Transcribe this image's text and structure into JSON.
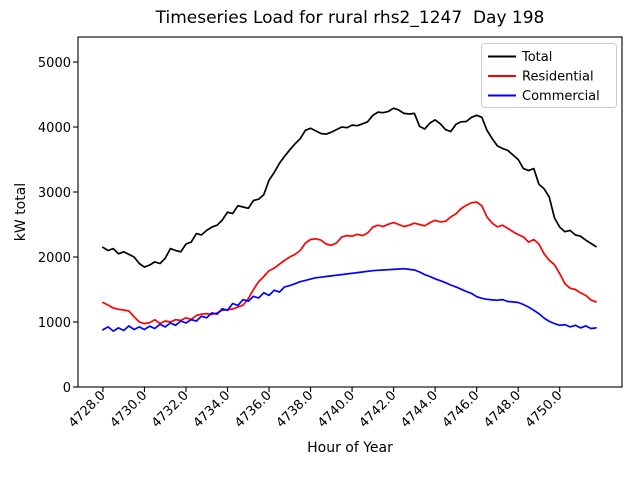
{
  "figure": {
    "background": "#ffffff",
    "spine_color": "#000000"
  },
  "chart_data": {
    "type": "line",
    "title": "Timeseries Load for rural rhs2_1247  Day 198",
    "xlabel": "Hour of Year",
    "ylabel": "kW total",
    "grid": false,
    "legend_position": "upper right",
    "legend_edge_color": "#cccccc",
    "xlim": [
      4726.8,
      4753.0
    ],
    "ylim": [
      0,
      5385
    ],
    "x_ticks": [
      4728,
      4730,
      4732,
      4734,
      4736,
      4738,
      4740,
      4742,
      4744,
      4746,
      4748,
      4750
    ],
    "x_tick_labels": [
      "4728.0",
      "4730.0",
      "4732.0",
      "4734.0",
      "4736.0",
      "4738.0",
      "4740.0",
      "4742.0",
      "4744.0",
      "4746.0",
      "4748.0",
      "4750.0"
    ],
    "y_ticks": [
      0,
      1000,
      2000,
      3000,
      4000,
      5000
    ],
    "y_tick_labels": [
      "0",
      "1000",
      "2000",
      "3000",
      "4000",
      "5000"
    ],
    "x_start": 4728.0,
    "x_step": 0.25,
    "series": [
      {
        "name": "Total",
        "color": "#000000",
        "values": [
          2150,
          2100,
          2130,
          2050,
          2080,
          2040,
          2000,
          1900,
          1845,
          1875,
          1925,
          1900,
          1980,
          2130,
          2100,
          2080,
          2200,
          2230,
          2360,
          2340,
          2410,
          2460,
          2490,
          2570,
          2690,
          2670,
          2790,
          2770,
          2750,
          2870,
          2890,
          2960,
          3180,
          3300,
          3440,
          3550,
          3650,
          3740,
          3820,
          3950,
          3980,
          3940,
          3900,
          3890,
          3920,
          3960,
          4000,
          3990,
          4030,
          4020,
          4050,
          4080,
          4180,
          4230,
          4220,
          4240,
          4290,
          4260,
          4210,
          4200,
          4210,
          4010,
          3970,
          4060,
          4110,
          4050,
          3960,
          3930,
          4040,
          4080,
          4085,
          4150,
          4180,
          4150,
          3950,
          3820,
          3710,
          3670,
          3640,
          3570,
          3500,
          3360,
          3330,
          3360,
          3120,
          3050,
          2920,
          2600,
          2460,
          2390,
          2410,
          2340,
          2320,
          2260,
          2210,
          2160
        ]
      },
      {
        "name": "Residential",
        "color": "#ff0000",
        "values": [
          1300,
          1260,
          1215,
          1195,
          1185,
          1170,
          1080,
          1000,
          975,
          990,
          1035,
          975,
          1015,
          1000,
          1035,
          1025,
          1065,
          1040,
          1100,
          1120,
          1130,
          1115,
          1140,
          1180,
          1190,
          1200,
          1230,
          1260,
          1360,
          1500,
          1620,
          1700,
          1790,
          1830,
          1890,
          1950,
          2000,
          2040,
          2100,
          2215,
          2270,
          2280,
          2260,
          2200,
          2180,
          2215,
          2310,
          2330,
          2320,
          2350,
          2330,
          2370,
          2460,
          2490,
          2470,
          2505,
          2530,
          2500,
          2470,
          2490,
          2520,
          2500,
          2480,
          2530,
          2565,
          2540,
          2550,
          2615,
          2665,
          2745,
          2795,
          2836,
          2845,
          2790,
          2615,
          2520,
          2465,
          2490,
          2440,
          2390,
          2345,
          2310,
          2230,
          2270,
          2200,
          2050,
          1950,
          1880,
          1745,
          1590,
          1520,
          1500,
          1450,
          1410,
          1340,
          1310
        ]
      },
      {
        "name": "Commercial",
        "color": "#0000ff",
        "values": [
          880,
          925,
          860,
          910,
          870,
          940,
          885,
          925,
          885,
          935,
          900,
          965,
          925,
          985,
          950,
          1015,
          985,
          1035,
          1015,
          1090,
          1065,
          1140,
          1120,
          1205,
          1180,
          1285,
          1255,
          1345,
          1320,
          1395,
          1370,
          1450,
          1410,
          1490,
          1460,
          1540,
          1560,
          1590,
          1620,
          1640,
          1660,
          1680,
          1690,
          1700,
          1710,
          1720,
          1730,
          1740,
          1750,
          1760,
          1770,
          1780,
          1790,
          1795,
          1800,
          1805,
          1810,
          1815,
          1820,
          1810,
          1800,
          1770,
          1730,
          1700,
          1665,
          1635,
          1605,
          1570,
          1540,
          1505,
          1470,
          1440,
          1390,
          1365,
          1350,
          1340,
          1335,
          1345,
          1315,
          1310,
          1300,
          1270,
          1230,
          1180,
          1130,
          1060,
          1010,
          975,
          950,
          960,
          925,
          950,
          910,
          940,
          900,
          910
        ]
      }
    ]
  }
}
